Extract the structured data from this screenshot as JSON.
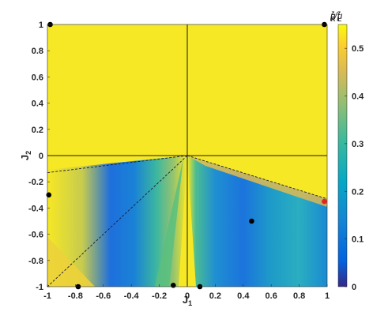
{
  "chart_data": {
    "type": "heatmap",
    "xlabel": "J",
    "xlabel_sub": "1",
    "ylabel": "J",
    "ylabel_sub": "2",
    "xlim": [
      -1,
      1
    ],
    "ylim": [
      -1,
      1
    ],
    "x_ticks": [
      "-1",
      "-0.8",
      "-0.6",
      "-0.4",
      "-0.2",
      "0",
      "0.2",
      "0.4",
      "0.6",
      "0.8",
      "1"
    ],
    "y_ticks": [
      "1",
      "0.8",
      "0.6",
      "0.4",
      "0.2",
      "0",
      "-0.2",
      "-0.4",
      "-0.6",
      "-0.8",
      "-1"
    ],
    "colorbar": {
      "label": "μ",
      "label_sup_num": "z",
      "label_sub_num": "R",
      "label_sup_den": "z",
      "label_sub_den": "L",
      "range": [
        0,
        0.55
      ],
      "ticks": [
        "0.5",
        "0.4",
        "0.3",
        "0.2",
        "0.1",
        "0"
      ],
      "colormap": "parula"
    },
    "points": [
      {
        "x": -0.98,
        "y": 1.0,
        "color": "#000000"
      },
      {
        "x": 0.98,
        "y": 1.0,
        "color": "#000000"
      },
      {
        "x": -0.99,
        "y": -0.3,
        "color": "#000000"
      },
      {
        "x": 0.98,
        "y": -0.35,
        "color": "#e8221c"
      },
      {
        "x": 0.46,
        "y": -0.5,
        "color": "#000000"
      },
      {
        "x": -0.78,
        "y": -1.0,
        "color": "#000000"
      },
      {
        "x": -0.1,
        "y": -0.99,
        "color": "#000000"
      },
      {
        "x": 0.09,
        "y": -1.0,
        "color": "#000000"
      }
    ],
    "lines": {
      "solid": [
        {
          "x1": 0,
          "y1": -1,
          "x2": 0,
          "y2": 1
        },
        {
          "x1": -1,
          "y1": 0,
          "x2": 1,
          "y2": 0
        }
      ],
      "dashed": [
        {
          "x1": 0,
          "y1": 0,
          "x2": -1,
          "y2": -0.13
        },
        {
          "x1": 0,
          "y1": 0,
          "x2": 1,
          "y2": -0.33
        },
        {
          "x1": 0,
          "y1": 0,
          "x2": -1,
          "y2": -1
        }
      ]
    }
  }
}
